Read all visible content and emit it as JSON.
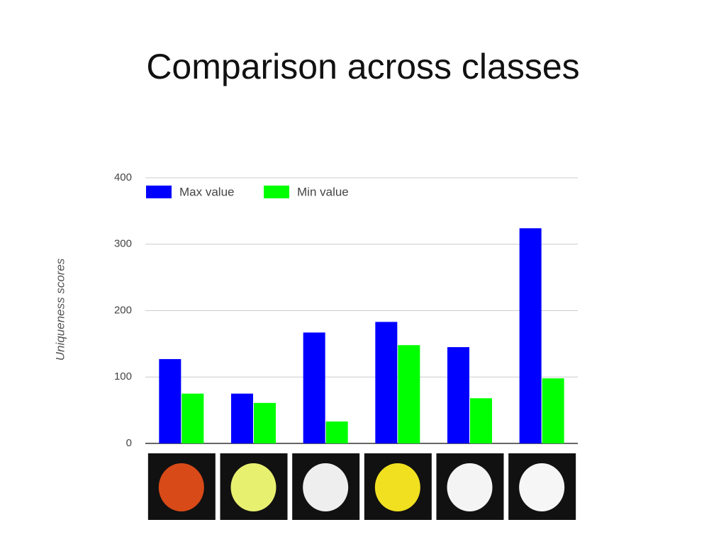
{
  "chart_data": {
    "type": "bar",
    "title": "Comparison across classes",
    "y_label": "Uniqueness scores",
    "categories": [
      null,
      null,
      null,
      null,
      null,
      null
    ],
    "series": [
      {
        "name": "Max value",
        "color": "#0000ff",
        "values": [
          127,
          75,
          167,
          183,
          145,
          324
        ]
      },
      {
        "name": "Min value",
        "color": "#00ff00",
        "values": [
          75,
          61,
          33,
          148,
          68,
          98
        ]
      }
    ],
    "ylim": [
      0,
      400
    ],
    "yticks": [
      0,
      100,
      200,
      300,
      400
    ],
    "grid": true,
    "legend": "top-left"
  }
}
